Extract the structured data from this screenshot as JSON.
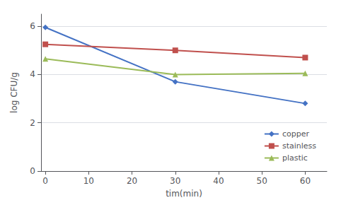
{
  "chart_data": {
    "type": "line",
    "xlabel": "tim(min)",
    "ylabel": "log CFU/g",
    "x": [
      0,
      30,
      60
    ],
    "series": [
      {
        "name": "copper",
        "color": "#4472C4",
        "marker": "diamond",
        "values": [
          5.95,
          3.7,
          2.8
        ]
      },
      {
        "name": "stainless",
        "color": "#C0504D",
        "marker": "square",
        "values": [
          5.25,
          5.0,
          4.7
        ]
      },
      {
        "name": "plastic",
        "color": "#9BBB59",
        "marker": "triangle",
        "values": [
          4.65,
          4.0,
          4.05
        ]
      }
    ],
    "xlim": [
      -1,
      65
    ],
    "ylim": [
      0,
      6.5
    ],
    "xticks": [
      0,
      10,
      20,
      30,
      40,
      50,
      60
    ],
    "yticks": [
      0,
      2,
      4,
      6
    ],
    "grid": "y",
    "legend": "lower right"
  }
}
